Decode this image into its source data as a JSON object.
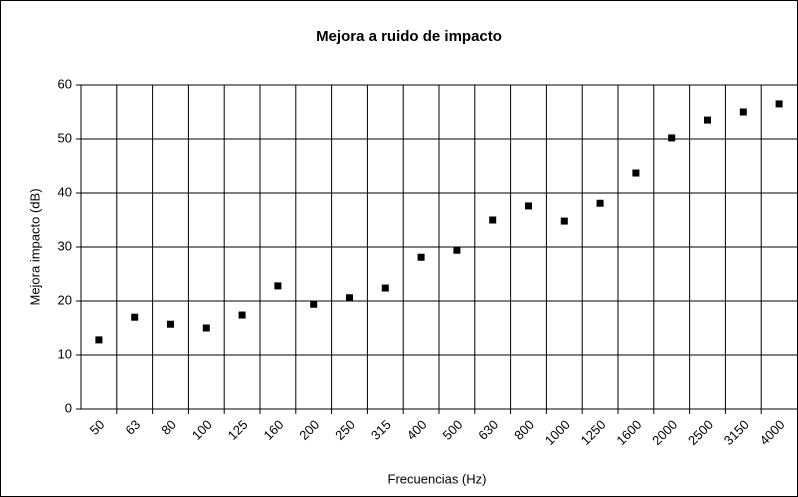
{
  "chart_data": {
    "type": "line",
    "title": "Mejora a ruido de impacto",
    "xlabel": "Frecuencias (Hz)",
    "ylabel": "Mejora impacto (dB)",
    "categories": [
      "50",
      "63",
      "80",
      "100",
      "125",
      "160",
      "200",
      "250",
      "315",
      "400",
      "500",
      "630",
      "800",
      "1000",
      "1250",
      "1600",
      "2000",
      "2500",
      "3150",
      "4000"
    ],
    "series": [
      {
        "name": "Mejora impacto",
        "color": "#000000",
        "marker": "square",
        "values": [
          12.8,
          17.0,
          15.7,
          15.0,
          17.4,
          22.8,
          19.4,
          20.6,
          22.4,
          28.1,
          29.4,
          35.0,
          37.6,
          34.8,
          38.1,
          43.7,
          50.2,
          53.5,
          55.0,
          56.5
        ]
      }
    ],
    "ylim": [
      0,
      60
    ],
    "yticks": [
      0,
      10,
      20,
      30,
      40,
      50,
      60
    ],
    "grid": true,
    "legend": false
  }
}
